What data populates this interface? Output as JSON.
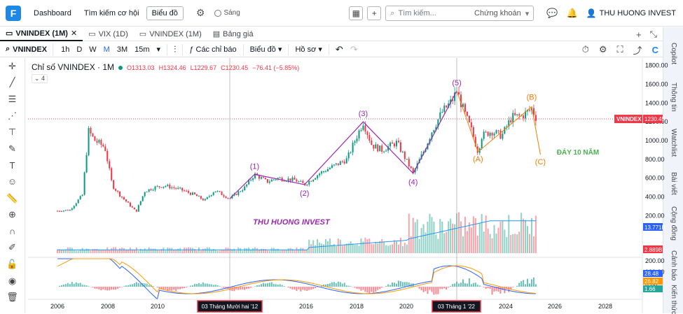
{
  "topbar": {
    "links": [
      "Dashboard",
      "Tìm kiếm cơ hội"
    ],
    "chart_button": "Biểu đồ",
    "theme_label": "Sáng",
    "search_placeholder": "Tìm kiếm...",
    "search_scope": "Chứng khoán",
    "user_name": "THU HUONG INVEST"
  },
  "tabs": [
    {
      "label": "VNINDEX (1M)",
      "active": true,
      "closable": true
    },
    {
      "label": "VIX (1D)",
      "active": false
    },
    {
      "label": "VNINDEX (1M)",
      "active": false
    },
    {
      "label": "Bảng giá",
      "active": false
    }
  ],
  "toolbar": {
    "symbol": "VNINDEX",
    "intervals": [
      "1h",
      "D",
      "W",
      "M",
      "3M",
      "15m"
    ],
    "active_interval": "M",
    "indicators_label": "Các chỉ báo",
    "chart_label": "Biểu đồ",
    "profile_label": "Hồ sơ"
  },
  "right_sidebar": [
    "Copilot",
    "Thông tin",
    "Watchlist",
    "Bài viết",
    "Cộng đồng",
    "Cảnh báo",
    "Kiến thức"
  ],
  "legend": {
    "title": "Chỉ số VNINDEX · 1M",
    "open": "O1313.03",
    "high": "H1324.46",
    "low": "L1229.67",
    "close": "C1230.45",
    "change": "−76.41 (−5.85%)",
    "collapse_count": "4"
  },
  "chart_data": {
    "type": "candlestick",
    "symbol": "VNINDEX",
    "interval": "1M",
    "last_close": 1230.45,
    "price_axis": {
      "ticks": [
        1800,
        1600,
        1400,
        1200,
        1000,
        800,
        600,
        400,
        200
      ],
      "labels": [
        "1800.00",
        "1600.00",
        "1400.00",
        "1200.00",
        "1000.00",
        "800.00",
        "600.00",
        "400.00",
        "200.00"
      ]
    },
    "price_label": {
      "text": "VNINDEX",
      "value": "1230.45"
    },
    "volume_labels": [
      "13.771B",
      "2.889B"
    ],
    "osc_axis": {
      "ticks": [
        "200.00",
        "100.00",
        "0.00"
      ],
      "labels_colored": [
        "28.48",
        "26.82",
        "1.66"
      ]
    },
    "x_labels": [
      "2006",
      "2008",
      "2010",
      "2016",
      "2018",
      "2020",
      "2024",
      "2026",
      "2028"
    ],
    "x_highlight": [
      "03 Tháng Mười hai '12",
      "03 Tháng 1 '22"
    ],
    "elliott_wave": [
      {
        "label": "(1)",
        "date": 2013.9,
        "price": 640
      },
      {
        "label": "(2)",
        "date": 2015.9,
        "price": 530
      },
      {
        "label": "(3)",
        "date": 2018.25,
        "price": 1200
      },
      {
        "label": "(4)",
        "date": 2020.25,
        "price": 650
      },
      {
        "label": "(5)",
        "date": 2022.0,
        "price": 1530
      }
    ],
    "abc_wave": [
      {
        "label": "(A)",
        "date": 2022.85,
        "price": 880
      },
      {
        "label": "(B)",
        "date": 2025.0,
        "price": 1360
      },
      {
        "label": "(C)",
        "date": 2025.35,
        "price": 850
      }
    ],
    "start_low": {
      "date": 2012.9,
      "price": 380
    },
    "annotations": [
      "THU HUONG INVEST",
      "ĐÁY 10 NĂM"
    ],
    "colors": {
      "up": "#089981",
      "down": "#f23645",
      "wave": "#9c27b0",
      "abc": "#f57c00",
      "note_green": "#4caf50"
    }
  }
}
